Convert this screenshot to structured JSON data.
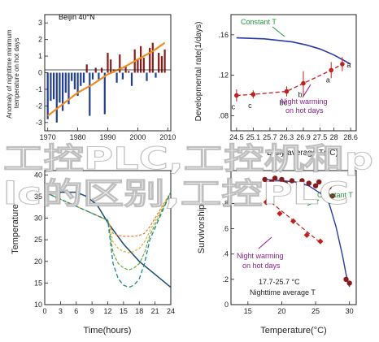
{
  "overlay": {
    "line1": "工控PLC,工控机和p",
    "line2": "lc的区别,工控PLC"
  },
  "colors": {
    "bar_positive": "#8b1a1a",
    "bar_negative": "#1f3f99",
    "trend": "#f28c1e",
    "constant_line": "#2a3aa8",
    "warming_line": "#c21f1f",
    "annotation_green": "#1f9a3a",
    "annotation_purple": "#8a1f8a",
    "curve_dark": "#1a4d6e",
    "curve_teal": "#1a8a8a",
    "curve_green": "#6aa63a",
    "curve_yellow": "#d6b23a",
    "curve_orange": "#e8782a",
    "overlay_text": "#ffffff"
  },
  "chart_data": [
    {
      "type": "bar",
      "id": "anomaly",
      "annotation": "Beijin 40°N",
      "ylabel": "Anomaly of nighttime minimum temperature on hot days",
      "xlabel": "",
      "ylim": [
        -3.5,
        3.5
      ],
      "yticks": [
        -3,
        -2,
        -1,
        0,
        1,
        2,
        3
      ],
      "xlim": [
        1969,
        2011
      ],
      "xticks": [
        1970,
        1980,
        1990,
        2000,
        2010
      ],
      "x": [
        1970,
        1971,
        1972,
        1973,
        1974,
        1975,
        1976,
        1977,
        1978,
        1979,
        1980,
        1981,
        1982,
        1983,
        1984,
        1985,
        1986,
        1987,
        1988,
        1989,
        1990,
        1991,
        1992,
        1993,
        1994,
        1995,
        1996,
        1997,
        1998,
        1999,
        2000,
        2001,
        2002,
        2003,
        2004,
        2005,
        2006,
        2007,
        2008,
        2009
      ],
      "values": [
        -2.8,
        -1.7,
        -1.6,
        -3.0,
        -1.8,
        -2.3,
        -1.2,
        -1.9,
        -0.5,
        -1.0,
        -1.4,
        -0.8,
        -0.6,
        0.5,
        -2.6,
        -0.4,
        0.3,
        -0.4,
        0.3,
        -2.5,
        1.2,
        0.8,
        0.2,
        -0.6,
        1.1,
        -0.4,
        0.4,
        0.1,
        -0.8,
        1.4,
        0.8,
        1.6,
        0.9,
        -0.5,
        1.5,
        1.8,
        -0.3,
        1.2,
        1.0,
        1.4
      ],
      "trend": {
        "x": [
          1970,
          1975,
          1980,
          1985,
          1990,
          1995,
          2000,
          2005,
          2009
        ],
        "y": [
          -2.6,
          -1.9,
          -1.2,
          -0.7,
          -0.1,
          0.3,
          0.8,
          1.3,
          1.8
        ]
      }
    },
    {
      "type": "line",
      "id": "development",
      "ylabel": "Developmental rate(1/days)",
      "xlabel": "Daily average T(°C)",
      "xlim": [
        24.3,
        28.8
      ],
      "ylim": [
        0.065,
        0.18
      ],
      "xticks": [
        24.5,
        25.1,
        25.7,
        26.3,
        26.9,
        27.5,
        28.0,
        28.6
      ],
      "xtick_labels": [
        "24.5",
        "25.1",
        "25.7",
        "26.3",
        "26.9",
        "27.5",
        "28",
        "28.6"
      ],
      "yticks": [
        0.08,
        0.12,
        0.16
      ],
      "ytick_labels": [
        ".08",
        ".12",
        ".16"
      ],
      "series": [
        {
          "name": "Constant T",
          "style": "solid",
          "x": [
            24.5,
            25.5,
            26.5,
            27.0,
            27.5,
            28.0,
            28.6
          ],
          "y": [
            0.157,
            0.156,
            0.153,
            0.15,
            0.146,
            0.14,
            0.131
          ]
        },
        {
          "name": "Night warming on hot days",
          "style": "dashed",
          "x": [
            24.5,
            25.1,
            26.3,
            26.9,
            27.9,
            28.3
          ],
          "y": [
            0.1,
            0.101,
            0.104,
            0.112,
            0.125,
            0.131
          ],
          "err": [
            0.006,
            0.004,
            0.005,
            0.012,
            0.008,
            0.007
          ],
          "point_labels": [
            "c",
            "c",
            "bc",
            "b",
            "a",
            "a"
          ]
        }
      ]
    },
    {
      "type": "line",
      "id": "temperature",
      "ylabel": "Temperature",
      "xlabel": "Time(hours)",
      "xlim": [
        0,
        24
      ],
      "ylim": [
        10,
        41
      ],
      "xticks": [
        0,
        3,
        6,
        9,
        12,
        15,
        18,
        21,
        24
      ],
      "yticks": [
        10,
        15,
        20,
        25,
        30,
        35,
        40
      ],
      "series": [
        {
          "x": [
            0,
            6,
            8,
            10,
            12,
            15,
            18,
            21,
            24
          ],
          "y": [
            36,
            36,
            35,
            33,
            29,
            24,
            20,
            17,
            14
          ]
        },
        {
          "x": [
            0,
            12,
            13,
            14,
            15,
            16,
            17,
            18,
            19,
            20,
            24
          ],
          "y": [
            36,
            29.5,
            26.5,
            26,
            25.8,
            25.8,
            25.8,
            26,
            26.5,
            28,
            36
          ]
        },
        {
          "x": [
            0,
            12,
            13,
            14,
            15,
            16,
            17,
            18,
            19,
            20,
            24
          ],
          "y": [
            36,
            29.5,
            24.5,
            23,
            22.3,
            22,
            22.3,
            23,
            24.5,
            27,
            36
          ]
        },
        {
          "x": [
            0,
            12,
            13,
            14,
            15,
            16,
            17,
            18,
            19,
            20,
            24
          ],
          "y": [
            36,
            29.5,
            22,
            19.5,
            18.5,
            18,
            18.5,
            19.5,
            22,
            26,
            36
          ]
        },
        {
          "x": [
            0,
            12,
            13,
            14,
            15,
            16,
            17,
            18,
            19,
            20,
            24
          ],
          "y": [
            36,
            29.5,
            19.5,
            16,
            14.5,
            14,
            14.5,
            16,
            19.5,
            25,
            36
          ]
        }
      ]
    },
    {
      "type": "scatter",
      "id": "survivorship",
      "ylabel": "Survivorship",
      "xlabel": "Temperature(°C)",
      "xlim": [
        12.5,
        31
      ],
      "ylim": [
        0,
        1.06
      ],
      "xticks": [
        15,
        20,
        25,
        30
      ],
      "yticks": [
        0,
        0.2,
        0.4,
        0.6,
        0.8
      ],
      "ytick_labels": [
        "0",
        ".2",
        ".4",
        ".6",
        ".8"
      ],
      "annotations": [
        "Constant T",
        "Night warming",
        "on hot days",
        "17.7-25.7 °C",
        "Nighttime average T"
      ],
      "series": [
        {
          "name": "Constant T",
          "x": [
            17.5,
            18.5,
            19,
            20,
            20.5,
            21.5,
            22.5,
            23,
            24,
            25,
            25.5,
            26.5,
            27,
            27.5,
            29.5,
            30
          ],
          "y": [
            0.99,
            0.97,
            1.0,
            0.99,
            0.96,
            0.98,
            0.95,
            0.98,
            0.96,
            0.94,
            0.97,
            0.9,
            0.93,
            0.86,
            0.2,
            0.17
          ],
          "fit": {
            "x": [
              17.5,
              20,
              22,
              24,
              26,
              27,
              28,
              29,
              29.5,
              30
            ],
            "y": [
              0.99,
              0.98,
              0.97,
              0.94,
              0.87,
              0.8,
              0.62,
              0.38,
              0.24,
              0.14
            ]
          }
        },
        {
          "name": "Night warming on hot days",
          "x": [
            17.7,
            19.7,
            21.7,
            23.7,
            25.7
          ],
          "y": [
            0.81,
            0.72,
            0.66,
            0.55,
            0.5
          ],
          "fit": {
            "x": [
              17.7,
              25.7
            ],
            "y": [
              0.84,
              0.49
            ]
          }
        }
      ]
    }
  ]
}
